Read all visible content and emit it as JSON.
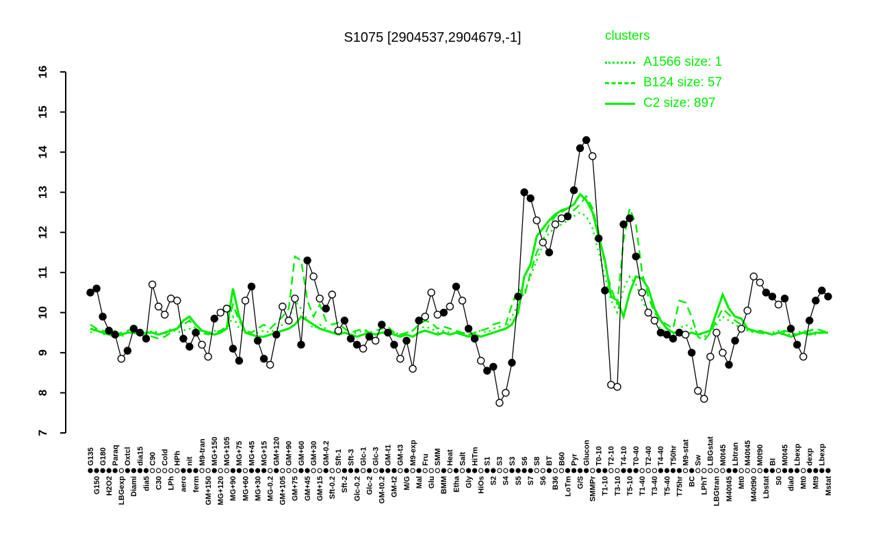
{
  "legend": {
    "title": "clusters",
    "entries": [
      {
        "label": "A1566 size: 1",
        "style": "dotted"
      },
      {
        "label": "B124 size: 57",
        "style": "dashed"
      },
      {
        "label": "C2 size: 897",
        "style": "solid"
      }
    ]
  },
  "chart_data": {
    "type": "line",
    "title": "S1075 [2904537,2904679,-1]",
    "xlabel": "",
    "ylabel": "",
    "ylim": [
      7,
      16
    ],
    "yticks": [
      7,
      8,
      9,
      10,
      11,
      12,
      13,
      14,
      15,
      16
    ],
    "grid": false,
    "legend_position": "top-right",
    "cluster_color": "#00ee00",
    "categories": [
      "G135",
      "G150",
      "G180",
      "H2O2",
      "Paraq",
      "LBGexp",
      "Oxtcl",
      "Diami",
      "dia15",
      "dia5",
      "C90",
      "C30",
      "Cold",
      "LPh",
      "HPh",
      "aero",
      "nit",
      "ferm",
      "M9-tran",
      "GM+150",
      "MG+150",
      "MG+120",
      "MG+105",
      "MG+90",
      "MG+75",
      "MG+60",
      "MG+45",
      "MG+30",
      "MG+15",
      "MG-0.2",
      "GM+120",
      "GM+105",
      "GM+90",
      "GM+75",
      "GM+60",
      "GM+45",
      "GM+30",
      "GM+15",
      "GM-0.2",
      "Sft-0.2",
      "Sft-1",
      "Sft-2",
      "Sft-3",
      "Glc-0.2",
      "Glc-1",
      "Glc-2",
      "Glc-3",
      "GM-t0.2",
      "GM-t1",
      "GM-t2",
      "GM-t3",
      "M/G",
      "M9-exp",
      "Mal",
      "Fru",
      "Glu",
      "SMM",
      "BMM",
      "Heat",
      "Etha",
      "Salt",
      "Gly",
      "HiTm",
      "HiOs",
      "S1",
      "S2",
      "S3",
      "S4",
      "S3",
      "S5",
      "S6",
      "S7",
      "S8",
      "S6",
      "BT",
      "B36",
      "B60",
      "LoTm",
      "Pyr",
      "G/S",
      "Glucon",
      "SMMPr",
      "T0-10",
      "T1-10",
      "T2-10",
      "T3-10",
      "T4-10",
      "T5-10",
      "T0-40",
      "T1-40",
      "T2-40",
      "T3-40",
      "T4-40",
      "T5-40",
      "T50hr",
      "T75hr",
      "M9-stat",
      "BC",
      "Sw",
      "LPhT",
      "LBGstat",
      "LBGtran",
      "M0t45",
      "M40t45",
      "Lbtran",
      "Mt0",
      "M40t45",
      "M40t90",
      "M0t90",
      "Lbstat",
      "BI",
      "S0",
      "M0t45",
      "dia0",
      "Lbexp",
      "Mt0",
      "dexp",
      "Mt9",
      "Lbexp",
      "Mstat"
    ],
    "marker_segments": [
      "fffffoffff",
      "ooooof",
      "ffoofo",
      "offoff",
      "fofoo",
      "offoof",
      "oofffo",
      "fofff",
      "ofofoo",
      "ofofo",
      "ffoff",
      "ooff",
      "ffoofoofff",
      "fo",
      "ffooff",
      "foooffffo",
      "fooo",
      "ooffooo",
      "offof",
      "ffo",
      "ffff"
    ],
    "series": [
      {
        "name": "A1566",
        "style": "dotted",
        "color": "#00ee00",
        "width": 2.4,
        "values": [
          9.5,
          9.6,
          9.45,
          9.5,
          9.55,
          9.4,
          9.5,
          9.6,
          9.5,
          9.45,
          9.55,
          9.5,
          9.45,
          9.6,
          9.5,
          9.55,
          9.6,
          9.5,
          9.45,
          9.5,
          9.55,
          9.5,
          9.6,
          9.9,
          9.6,
          9.5,
          9.45,
          9.5,
          9.55,
          9.5,
          9.6,
          9.7,
          9.8,
          10.3,
          10.1,
          9.8,
          9.6,
          9.7,
          9.6,
          9.5,
          9.55,
          9.5,
          9.45,
          9.5,
          9.55,
          9.5,
          9.45,
          9.5,
          9.55,
          9.5,
          9.45,
          9.5,
          9.55,
          9.6,
          9.65,
          9.6,
          9.5,
          9.55,
          9.5,
          9.45,
          9.5,
          9.45,
          9.5,
          9.55,
          9.5,
          9.6,
          9.65,
          9.6,
          9.9,
          10.2,
          10.5,
          10.9,
          11.3,
          11.7,
          12.0,
          12.1,
          12.2,
          12.3,
          12.4,
          12.5,
          12.4,
          12.1,
          11.5,
          10.9,
          10.3,
          10.0,
          10.6,
          10.9,
          10.7,
          10.3,
          10.0,
          9.8,
          9.6,
          9.5,
          9.45,
          9.6,
          9.7,
          9.6,
          9.5,
          9.4,
          9.5,
          9.7,
          9.9,
          9.8,
          9.7,
          9.6,
          9.55,
          9.5,
          9.5,
          9.45,
          9.5,
          9.55,
          9.5,
          9.45,
          9.5,
          9.55,
          9.5,
          9.45,
          9.5,
          9.5
        ]
      },
      {
        "name": "B124",
        "style": "dashed",
        "color": "#00ee00",
        "width": 2.4,
        "values": [
          9.7,
          9.6,
          9.55,
          9.5,
          9.45,
          9.5,
          9.55,
          9.6,
          9.5,
          9.45,
          9.4,
          9.35,
          9.4,
          9.5,
          9.6,
          9.7,
          9.8,
          9.6,
          9.5,
          9.45,
          9.5,
          9.55,
          9.65,
          10.2,
          9.8,
          9.55,
          9.5,
          9.6,
          9.7,
          9.6,
          9.75,
          9.9,
          10.1,
          11.4,
          11.3,
          10.3,
          9.9,
          10.2,
          9.8,
          9.7,
          9.75,
          9.6,
          9.5,
          9.55,
          9.6,
          9.5,
          9.55,
          9.6,
          9.65,
          9.5,
          9.45,
          9.5,
          9.55,
          9.7,
          9.8,
          9.75,
          9.6,
          9.65,
          9.6,
          9.55,
          9.5,
          9.45,
          9.5,
          9.55,
          9.6,
          9.7,
          9.75,
          9.7,
          10.2,
          10.6,
          10.4,
          11.0,
          11.5,
          11.8,
          12.2,
          12.4,
          12.5,
          12.6,
          12.55,
          12.7,
          12.9,
          12.6,
          12.0,
          11.2,
          10.6,
          10.2,
          11.8,
          12.6,
          12.2,
          11.0,
          10.4,
          10.0,
          9.8,
          9.7,
          9.6,
          10.3,
          10.25,
          9.9,
          9.4,
          9.3,
          9.5,
          9.8,
          10.1,
          9.95,
          9.8,
          9.7,
          9.6,
          9.5,
          9.55,
          9.5,
          9.45,
          9.5,
          9.55,
          9.5,
          9.45,
          9.5,
          9.55,
          9.6,
          9.55,
          9.5
        ]
      },
      {
        "name": "C2",
        "style": "solid",
        "color": "#00ee00",
        "width": 3.2,
        "values": [
          9.6,
          9.55,
          9.5,
          9.45,
          9.4,
          9.45,
          9.5,
          9.5,
          9.45,
          9.5,
          9.5,
          9.45,
          9.5,
          9.55,
          9.6,
          9.8,
          9.9,
          9.7,
          9.55,
          9.5,
          9.45,
          9.5,
          9.6,
          10.6,
          9.9,
          9.5,
          9.45,
          9.4,
          9.4,
          9.45,
          9.5,
          9.55,
          9.6,
          9.7,
          9.9,
          9.8,
          9.7,
          9.6,
          9.55,
          9.5,
          9.45,
          9.5,
          9.45,
          9.4,
          9.45,
          9.5,
          9.45,
          9.5,
          9.5,
          9.45,
          9.4,
          9.45,
          9.4,
          9.5,
          9.55,
          9.5,
          9.45,
          9.5,
          9.45,
          9.5,
          9.45,
          9.4,
          9.45,
          9.4,
          9.45,
          9.5,
          9.55,
          9.6,
          9.7,
          10.0,
          10.9,
          11.2,
          11.9,
          12.1,
          12.3,
          12.45,
          12.55,
          12.6,
          12.7,
          12.95,
          12.8,
          12.5,
          11.9,
          11.3,
          10.4,
          10.3,
          9.9,
          10.5,
          10.9,
          10.85,
          10.6,
          10.1,
          9.8,
          9.6,
          9.5,
          9.5,
          9.45,
          9.5,
          9.45,
          9.5,
          9.55,
          10.0,
          10.45,
          10.1,
          9.9,
          9.85,
          9.6,
          9.55,
          9.5,
          9.5,
          9.45,
          9.5,
          9.45,
          9.4,
          9.45,
          9.5,
          9.45,
          9.5,
          9.5,
          9.5
        ]
      },
      {
        "name": "profile",
        "style": "solid",
        "color": "#000000",
        "width": 1.3,
        "values": [
          10.5,
          10.6,
          9.9,
          9.55,
          9.45,
          8.85,
          9.05,
          9.6,
          9.5,
          9.35,
          10.7,
          10.15,
          9.95,
          10.35,
          10.3,
          9.35,
          9.15,
          9.5,
          9.2,
          8.9,
          9.85,
          10.0,
          10.1,
          9.1,
          8.8,
          10.3,
          10.65,
          9.3,
          8.85,
          8.7,
          9.45,
          10.15,
          9.8,
          10.35,
          9.2,
          11.3,
          10.9,
          10.35,
          10.1,
          10.45,
          9.55,
          9.8,
          9.35,
          9.2,
          9.1,
          9.4,
          9.3,
          9.7,
          9.5,
          9.2,
          8.85,
          9.3,
          8.6,
          9.8,
          9.9,
          10.5,
          9.95,
          10.0,
          10.15,
          10.65,
          10.3,
          9.6,
          9.35,
          8.8,
          8.55,
          8.65,
          7.75,
          8.0,
          8.75,
          10.4,
          13.0,
          12.85,
          12.3,
          11.75,
          11.5,
          12.2,
          12.35,
          12.4,
          13.05,
          14.1,
          14.3,
          13.9,
          11.85,
          10.55,
          8.2,
          8.15,
          12.2,
          12.35,
          11.4,
          10.5,
          10.0,
          9.8,
          9.5,
          9.45,
          9.35,
          9.5,
          9.45,
          9.0,
          8.05,
          7.85,
          8.9,
          9.5,
          9.0,
          8.7,
          9.3,
          9.6,
          10.05,
          10.9,
          10.75,
          10.5,
          10.4,
          10.2,
          10.35,
          9.6,
          9.2,
          8.9,
          9.8,
          10.3,
          10.55,
          10.4
        ]
      }
    ]
  }
}
